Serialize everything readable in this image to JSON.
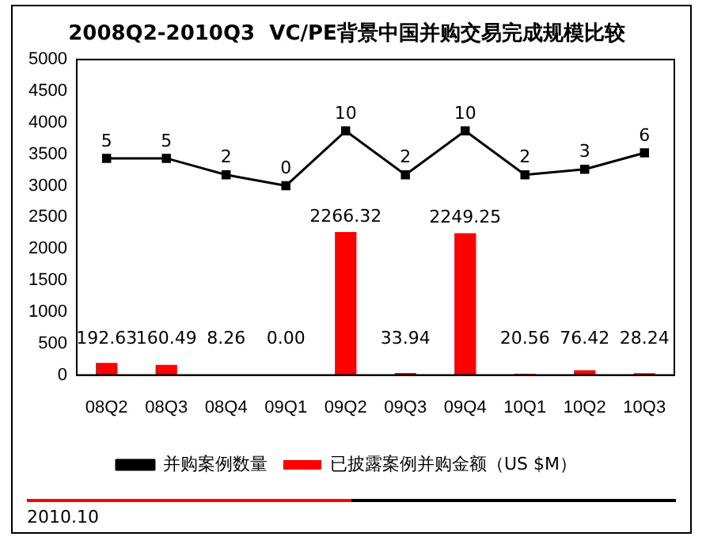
{
  "chart_data": {
    "type": "bar",
    "title": "2008Q2-2010Q3  VC/PE背景中国并购交易完成规模比较",
    "categories": [
      "08Q2",
      "08Q3",
      "08Q4",
      "09Q1",
      "09Q2",
      "09Q3",
      "09Q4",
      "10Q1",
      "10Q2",
      "10Q3"
    ],
    "series": [
      {
        "name": "已披露案例并购金额（US $M）",
        "color": "#ff0000",
        "values": [
          192.63,
          160.49,
          8.26,
          0.0,
          2266.32,
          33.94,
          2249.25,
          20.56,
          76.42,
          28.24
        ],
        "value_labels": [
          "192.63",
          "160.49",
          "8.26",
          "0.00",
          "2266.32",
          "33.94",
          "2249.25",
          "20.56",
          "76.42",
          "28.24"
        ]
      },
      {
        "name": "并购案例数量",
        "type": "line",
        "axis": "y2",
        "color": "#000000",
        "marker": "square",
        "values": [
          5,
          5,
          2,
          0,
          10,
          2,
          10,
          2,
          3,
          6
        ],
        "value_labels": [
          "5",
          "5",
          "2",
          "0",
          "10",
          "2",
          "10",
          "2",
          "3",
          "6"
        ]
      }
    ],
    "ylim": [
      0,
      5000
    ],
    "yticks": [
      0,
      500,
      1000,
      1500,
      2000,
      2500,
      3000,
      3500,
      4000,
      4500,
      5000
    ],
    "y2lim": [
      -34.5,
      23
    ],
    "grid": false,
    "legend": "bottom",
    "annotations": [
      "2010.10"
    ]
  }
}
